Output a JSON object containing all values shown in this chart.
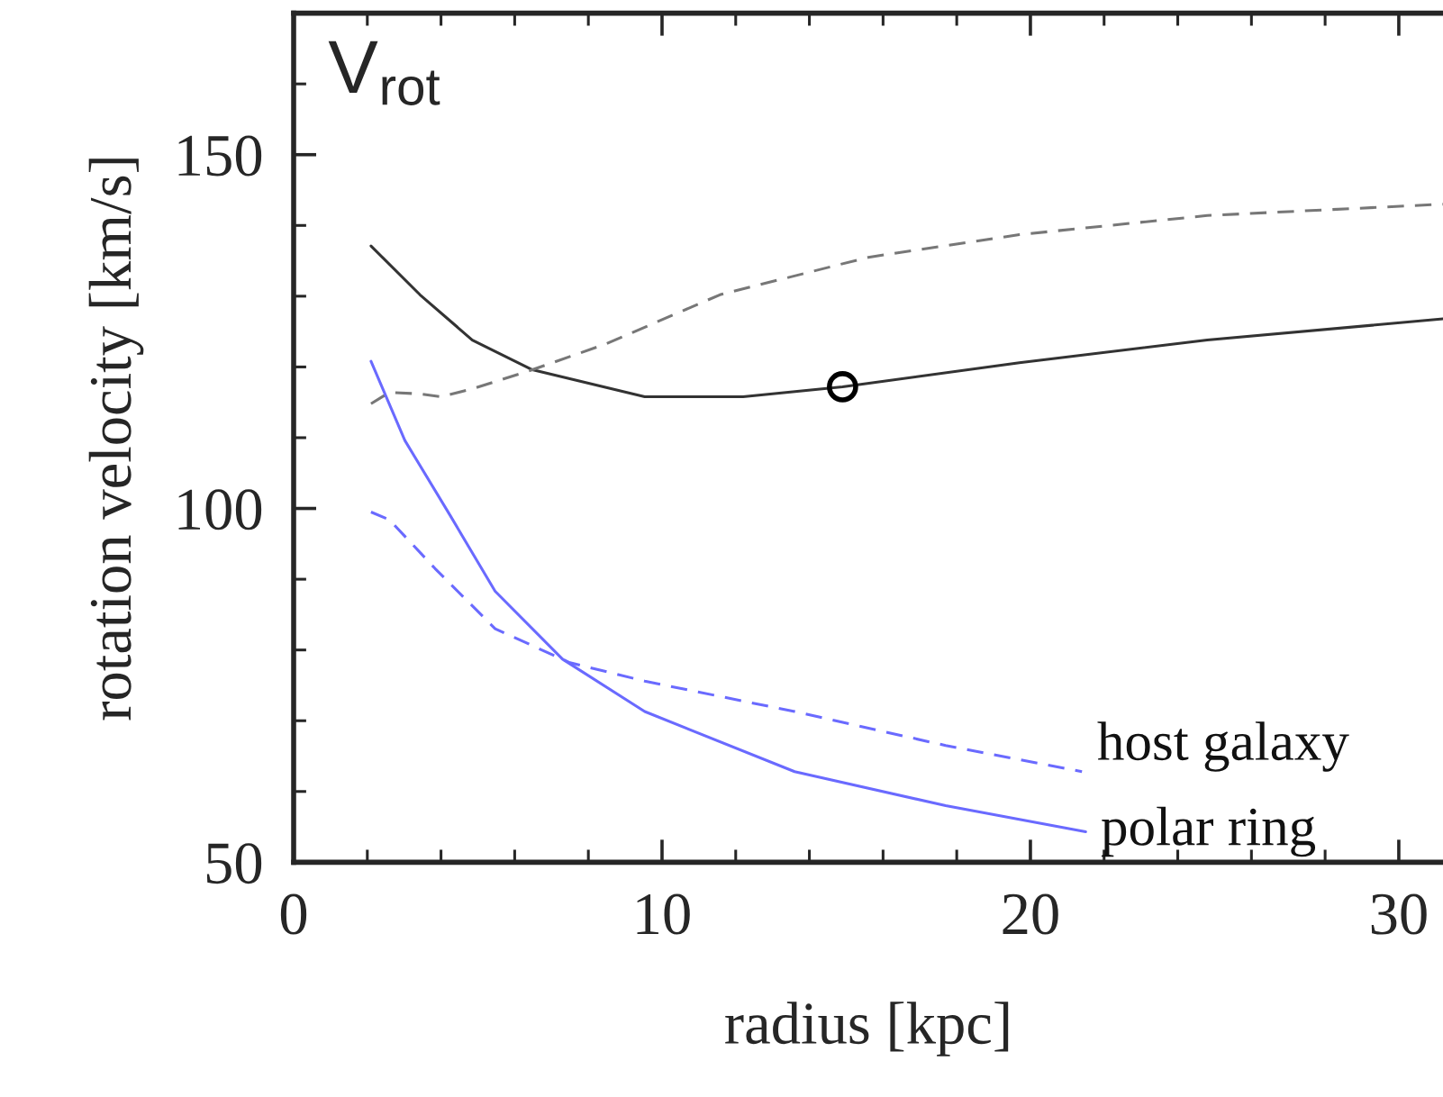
{
  "chart_data": {
    "type": "line",
    "xlabel": "radius [kpc]",
    "ylabel": "rotation velocity [km/s]",
    "annotations": [
      "V$_{rot}$"
    ],
    "xlim": [
      0,
      31.2
    ],
    "ylim": [
      50,
      170
    ],
    "xticks": [
      0,
      10,
      20,
      30
    ],
    "yticks": [
      50,
      100,
      150
    ],
    "grid": false,
    "legend": false,
    "series": [
      {
        "color": "#333333",
        "line_style": "solid",
        "x": [
          2.1,
          3.43,
          4.85,
          6.48,
          9.53,
          12.2,
          14.9,
          19.7,
          24.8,
          31.2
        ],
        "values": [
          137.1,
          130.2,
          123.8,
          119.6,
          115.8,
          115.8,
          117.2,
          120.6,
          123.8,
          126.8
        ]
      },
      {
        "color": "#777777",
        "line_style": "dashed",
        "x": [
          2.1,
          2.6,
          3.4,
          4.0,
          4.85,
          6.48,
          8.5,
          11.57,
          15.6,
          19.7,
          24.8,
          31.2
        ],
        "values": [
          114.8,
          116.4,
          116.2,
          115.8,
          116.9,
          119.6,
          123.3,
          130.2,
          135.5,
          138.7,
          141.4,
          143.0
        ]
      },
      {
        "name": "host galaxy",
        "color": "#6a6aff",
        "line_style": "dashed",
        "x": [
          2.1,
          2.6,
          3.84,
          5.47,
          7.5,
          9.53,
          13.6,
          17.7,
          21.4
        ],
        "values": [
          99.5,
          98.4,
          91.5,
          83.0,
          78.2,
          75.6,
          71.3,
          66.5,
          62.8
        ]
      },
      {
        "name": "polar ring",
        "color": "#6a6aff",
        "line_style": "solid",
        "x": [
          2.1,
          3.02,
          4.25,
          5.47,
          7.3,
          9.53,
          13.6,
          17.7,
          21.5
        ],
        "values": [
          120.8,
          109.6,
          99.0,
          88.3,
          78.7,
          71.3,
          62.8,
          58.0,
          54.3
        ]
      },
      {
        "type": "scatter",
        "color": "#000000",
        "marker": "circle",
        "x": [
          14.9
        ],
        "values": [
          117.2
        ]
      }
    ]
  }
}
